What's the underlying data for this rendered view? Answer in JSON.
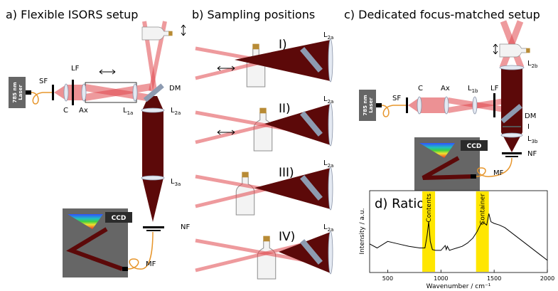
{
  "a": {
    "title": "a) Flexible ISORS setup",
    "laser": [
      "785 nm",
      "Laser"
    ],
    "ccd": "CCD",
    "labels": [
      {
        "text": "SF"
      },
      {
        "text": "LF"
      },
      {
        "text": "C"
      },
      {
        "text": "Ax"
      },
      {
        "text": "L",
        "sub": "1a"
      },
      {
        "text": "DM"
      },
      {
        "text": "L",
        "sub": "2a"
      },
      {
        "text": "L",
        "sub": "3a"
      },
      {
        "text": "NF"
      },
      {
        "text": "MF"
      }
    ]
  },
  "b": {
    "title": "b) Sampling positions",
    "rows": [
      {
        "label": "I)",
        "lens": {
          "text": "L",
          "sub": "2a"
        }
      },
      {
        "label": "II)",
        "lens": {
          "text": "L",
          "sub": "2a"
        }
      },
      {
        "label": "III)",
        "lens": {
          "text": "L",
          "sub": "2a"
        }
      },
      {
        "label": "IV)",
        "lens": {
          "text": "L",
          "sub": "2a"
        }
      }
    ]
  },
  "c": {
    "title": "c) Dedicated focus-matched setup",
    "laser": [
      "785 nm",
      "Laser"
    ],
    "ccd": "CCD",
    "labels": [
      {
        "text": "SF"
      },
      {
        "text": "C"
      },
      {
        "text": "Ax"
      },
      {
        "text": "L",
        "sub": "1b"
      },
      {
        "text": "LF"
      },
      {
        "text": "L",
        "sub": "2b"
      },
      {
        "text": "DM"
      },
      {
        "text": "I"
      },
      {
        "text": "L",
        "sub": "3b"
      },
      {
        "text": "NF"
      },
      {
        "text": "MF"
      }
    ]
  },
  "chart_data": {
    "type": "line",
    "title": "d) Ratio",
    "xlabel": "Wavenumber / cm⁻¹",
    "ylabel": "Intensity / a.u.",
    "xlim": [
      330,
      2000
    ],
    "xticks": [
      500,
      1000,
      1500,
      2000
    ],
    "ylim": [
      0,
      1
    ],
    "color": "#000000",
    "annotations": [
      {
        "text": "Contents",
        "x": 885
      },
      {
        "text": "Container",
        "x": 1390
      }
    ],
    "x": [
      330,
      400,
      500,
      600,
      700,
      800,
      850,
      870,
      885,
      900,
      920,
      950,
      1000,
      1040,
      1050,
      1060,
      1080,
      1100,
      1150,
      1200,
      1250,
      1300,
      1340,
      1370,
      1390,
      1410,
      1430,
      1450,
      1470,
      1500,
      1550,
      1600,
      1700,
      1800,
      1900,
      2000
    ],
    "values": [
      0.35,
      0.3,
      0.38,
      0.35,
      0.32,
      0.3,
      0.3,
      0.45,
      0.62,
      0.38,
      0.28,
      0.27,
      0.27,
      0.33,
      0.28,
      0.32,
      0.27,
      0.28,
      0.3,
      0.32,
      0.36,
      0.42,
      0.5,
      0.58,
      0.62,
      0.6,
      0.58,
      0.72,
      0.62,
      0.6,
      0.58,
      0.55,
      0.45,
      0.35,
      0.25,
      0.15
    ]
  }
}
